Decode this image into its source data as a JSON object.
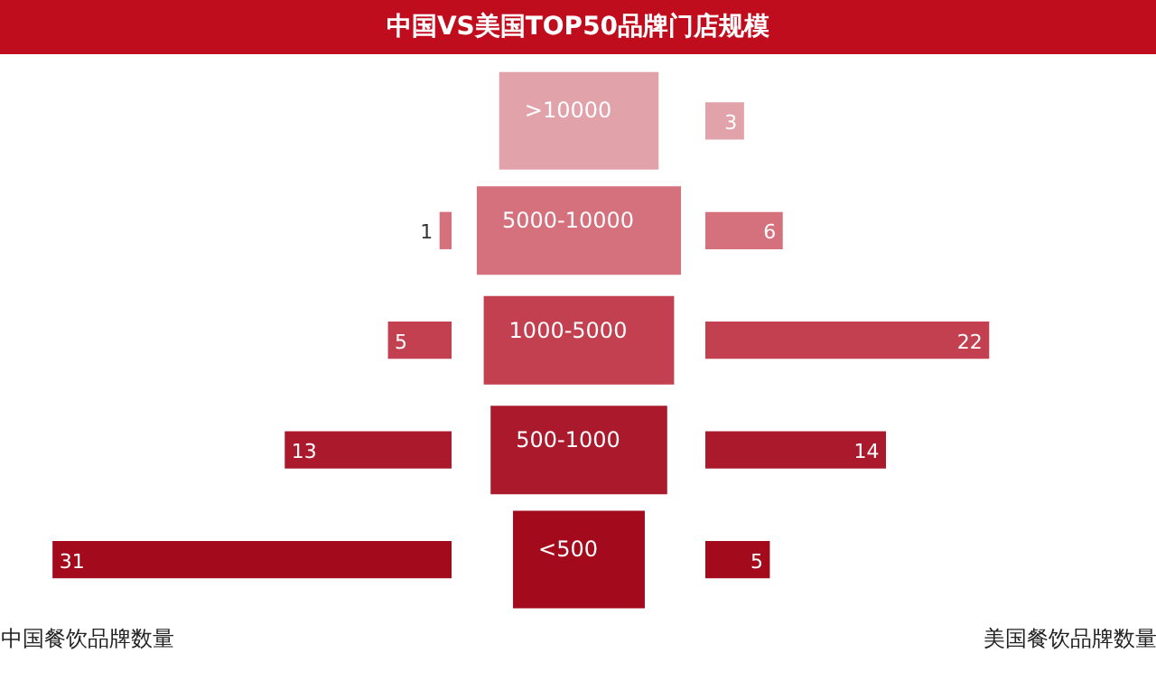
{
  "chart_data": [
    {
      "type": "bar",
      "orientation": "horizontal",
      "title": "中国VS美国TOP50品牌门店规模",
      "categories": [
        ">10000",
        "5000-10000",
        "1000-5000",
        "500-1000",
        "<500"
      ],
      "xlim": [
        35,
        0
      ],
      "tick_labels": false,
      "series": [
        {
          "name": "中国餐饮品牌数量",
          "colors": [
            "#e2a2aa",
            "#d5707d",
            "#c2404f",
            "#ab1a2c",
            "#a30a1c"
          ],
          "values": [
            0,
            1,
            5,
            13,
            31
          ],
          "value_labels": [
            null,
            "1",
            "5",
            "13",
            "31"
          ]
        }
      ]
    },
    {
      "type": "bar",
      "orientation": "horizontal",
      "categories": [
        ">10000",
        "5000-10000",
        "1000-5000",
        "500-1000",
        "<500"
      ],
      "xlim": [
        0,
        35
      ],
      "tick_labels": false,
      "series": [
        {
          "name": "美国餐饮品牌数量",
          "colors": [
            "#e2a2aa",
            "#d5707d",
            "#c2404f",
            "#ab1a2c",
            "#a30a1c"
          ],
          "values": [
            3,
            6,
            22,
            14,
            5
          ],
          "value_labels": [
            "3",
            "6",
            "22",
            "14",
            "5"
          ]
        }
      ]
    }
  ]
}
